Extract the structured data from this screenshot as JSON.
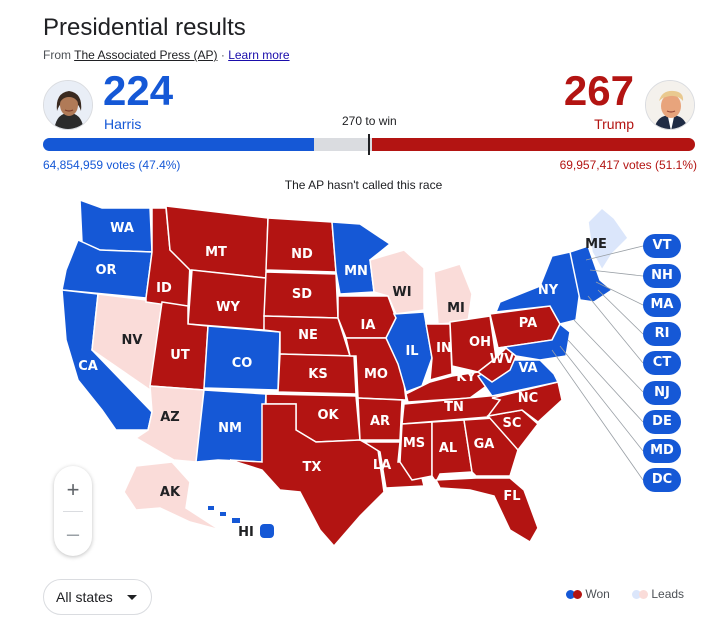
{
  "header": {
    "title": "Presidential results",
    "source_prefix": "From ",
    "source_link": "The Associated Press (AP)",
    "separator": " · ",
    "learn_more": "Learn more"
  },
  "harris": {
    "name": "Harris",
    "electoral": "224",
    "votes": "64,854,959 votes (47.4%)",
    "color": "#1558d6",
    "bar_fraction": 0.416
  },
  "trump": {
    "name": "Trump",
    "electoral": "267",
    "votes": "69,957,417 votes (51.1%)",
    "color": "#b31412",
    "bar_fraction": 0.496
  },
  "race": {
    "to_win": "270 to win",
    "status": "The AP hasn't called this race"
  },
  "states": {
    "WA": "WA",
    "OR": "OR",
    "CA": "CA",
    "NV": "NV",
    "ID": "ID",
    "MT": "MT",
    "WY": "WY",
    "UT": "UT",
    "AZ": "AZ",
    "CO": "CO",
    "NM": "NM",
    "ND": "ND",
    "SD": "SD",
    "NE": "NE",
    "KS": "KS",
    "OK": "OK",
    "TX": "TX",
    "MN": "MN",
    "IA": "IA",
    "MO": "MO",
    "AR": "AR",
    "LA": "LA",
    "WI": "WI",
    "IL": "IL",
    "MI": "MI",
    "IN": "IN",
    "OH": "OH",
    "KY": "KY",
    "TN": "TN",
    "MS": "MS",
    "AL": "AL",
    "GA": "GA",
    "FL": "FL",
    "SC": "SC",
    "NC": "NC",
    "VA": "VA",
    "WV": "WV",
    "PA": "PA",
    "NY": "NY",
    "ME": "ME",
    "AK": "AK",
    "HI": "HI"
  },
  "small_states": [
    "VT",
    "NH",
    "MA",
    "RI",
    "CT",
    "NJ",
    "DE",
    "MD",
    "DC"
  ],
  "zoom": {
    "in": "+",
    "out": "–"
  },
  "filter": {
    "selected": "All states"
  },
  "legend": {
    "won": "Won",
    "leads": "Leads"
  },
  "colors": {
    "dem": "#1558d6",
    "rep": "#b31412",
    "lean_dem": "#dbe6fb",
    "lean_rep": "#fadcd9"
  }
}
